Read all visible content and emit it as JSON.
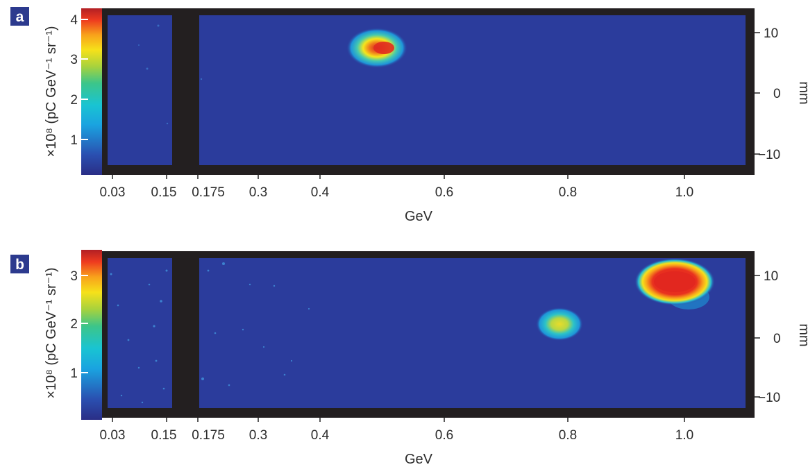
{
  "colors": {
    "frame": "#231f20",
    "background_blue": "#2b3c9c",
    "label_box": "#2c3a8e",
    "colormap": [
      "#2a2e86",
      "#2a4fb0",
      "#1aa3e0",
      "#19c4d2",
      "#3cc58a",
      "#a7d23d",
      "#f6e11a",
      "#f8a21b",
      "#ee3a1f",
      "#b21f24"
    ]
  },
  "chart_data": [
    {
      "type": "heatmap",
      "panel_label": "a",
      "xlabel": "GeV",
      "x_ticks": [
        "0.03",
        "0.15",
        "0.175",
        "0.3",
        "0.4",
        "0.6",
        "0.8",
        "1.0"
      ],
      "colorbar_label": "×10⁸ (pC GeV⁻¹ sr⁻¹)",
      "colorbar_ticks": [
        "1",
        "2",
        "3",
        "4"
      ],
      "colorbar_range": [
        0.3,
        4.3
      ],
      "right_label": "mm",
      "right_ticks": [
        "10",
        "0",
        "−10"
      ],
      "right_range": [
        -14,
        14
      ],
      "gap_between": [
        "0.15",
        "0.175"
      ],
      "spots": [
        {
          "energy_GeV": 0.5,
          "position_mm": 8,
          "peak": 4.1
        }
      ]
    },
    {
      "type": "heatmap",
      "panel_label": "b",
      "xlabel": "GeV",
      "x_ticks": [
        "0.03",
        "0.15",
        "0.175",
        "0.3",
        "0.4",
        "0.6",
        "0.8",
        "1.0"
      ],
      "colorbar_label": "×10⁸ (pC GeV⁻¹ sr⁻¹)",
      "colorbar_ticks": [
        "1",
        "2",
        "3"
      ],
      "colorbar_range": [
        0.2,
        3.5
      ],
      "right_label": "mm",
      "right_ticks": [
        "10",
        "0",
        "−10"
      ],
      "right_range": [
        -14,
        14
      ],
      "gap_between": [
        "0.15",
        "0.175"
      ],
      "spots": [
        {
          "energy_GeV": 0.79,
          "position_mm": 3,
          "peak": 2.3
        },
        {
          "energy_GeV": 0.99,
          "position_mm": 10,
          "peak": 3.4
        }
      ]
    }
  ]
}
